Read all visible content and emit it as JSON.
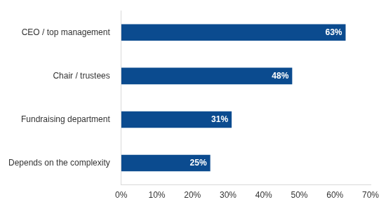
{
  "chart_data": {
    "type": "bar",
    "orientation": "horizontal",
    "categories": [
      "CEO / top management",
      "Chair / trustees",
      "Fundraising department",
      "Depends on the complexity"
    ],
    "values": [
      63,
      48,
      31,
      25
    ],
    "value_labels": [
      "63%",
      "48%",
      "31%",
      "25%"
    ],
    "data_labels": true,
    "color": "#0b4b8f",
    "xlim": [
      0,
      70
    ],
    "xticks": [
      {
        "value": 0,
        "label": "0%"
      },
      {
        "value": 10,
        "label": "10%"
      },
      {
        "value": 20,
        "label": "20%"
      },
      {
        "value": 30,
        "label": "30%"
      },
      {
        "value": 40,
        "label": "40%"
      },
      {
        "value": 50,
        "label": "50%"
      },
      {
        "value": 60,
        "label": "60%"
      },
      {
        "value": 70,
        "label": "70%"
      }
    ],
    "grid": false
  }
}
